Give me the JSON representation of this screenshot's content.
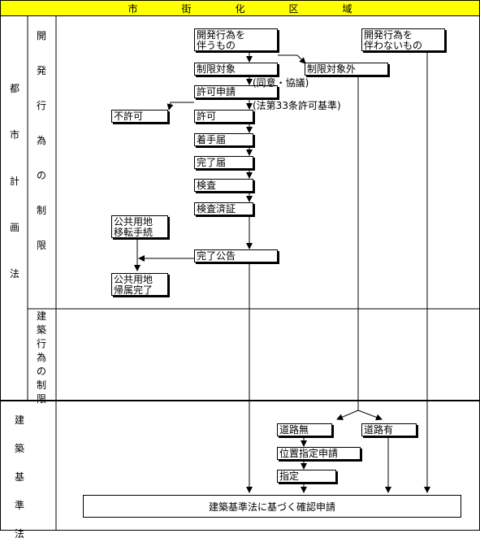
{
  "header": {
    "chars": [
      "市",
      "街",
      "化",
      "区",
      "域"
    ],
    "color": "#ffff00"
  },
  "side_labels": {
    "toshi": [
      "都",
      "市",
      "計",
      "画",
      "法"
    ],
    "kaihatsu": [
      "開",
      "発",
      "行",
      "為",
      "の",
      "制",
      "限"
    ],
    "kenchiku_koui": [
      "建",
      "築",
      "行",
      "為",
      "の",
      "制",
      "限"
    ],
    "kenchiku_kijun": [
      "建",
      "築",
      "基",
      "準",
      "法"
    ]
  },
  "boxes": {
    "with_dev": "開発行為を\n伴うもの",
    "without_dev": "開発行為を\n伴わないもの",
    "restricted": "制限対象",
    "not_restricted": "制限対象外",
    "permit_app": "許可申請",
    "denied": "不許可",
    "permitted": "許可",
    "start_notice": "着手届",
    "complete_notice": "完了届",
    "inspection": "検査",
    "inspection_cert": "検査済証",
    "public_transfer": "公共用地\n移転手続",
    "complete_announce": "完了公告",
    "public_attrib": "公共用地\n帰属完了",
    "no_road": "道路無",
    "has_road": "道路有",
    "position_app": "位置指定申請",
    "designated": "指定",
    "final": "建築基準法に基づく確認申請"
  },
  "notes": {
    "consent": "(同意・協議)",
    "art33": "(法第33条許可基準)"
  }
}
